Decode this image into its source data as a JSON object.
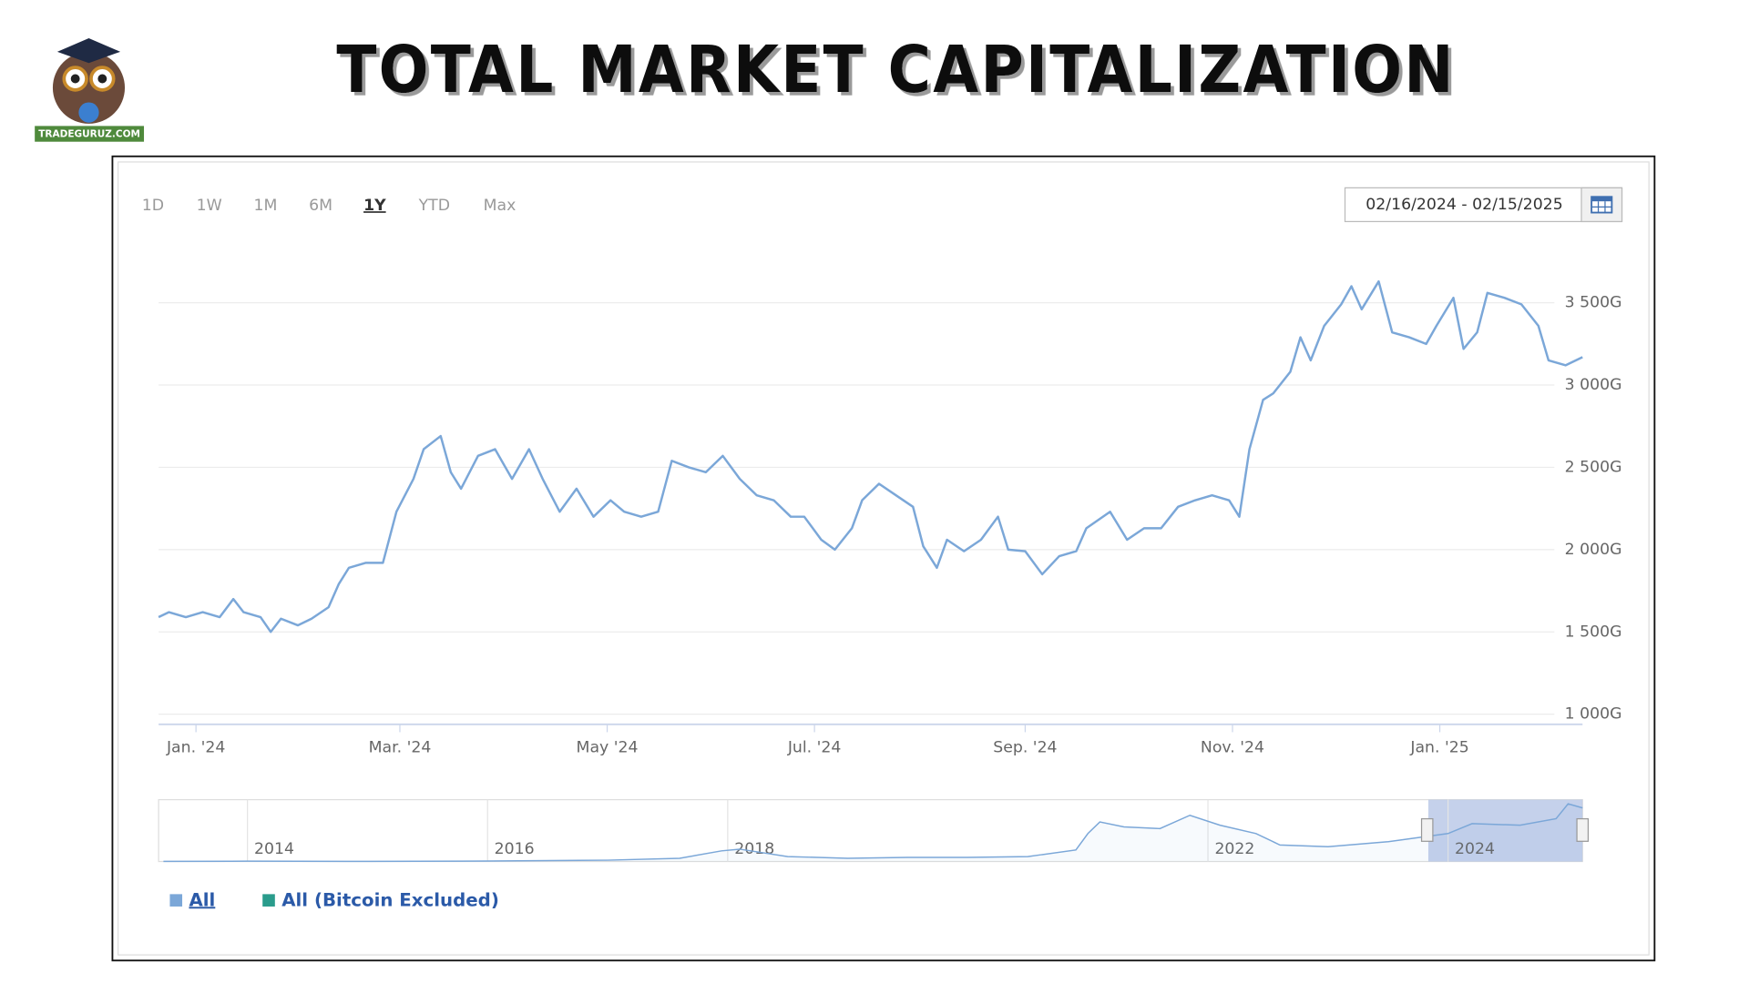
{
  "brand": "TRADEGURUZ.COM",
  "range_buttons": [
    "1D",
    "1W",
    "1M",
    "6M",
    "1Y",
    "YTD",
    "Max"
  ],
  "selected_button": 4,
  "date_range": "02/16/2024 - 02/15/2025",
  "chart_data": {
    "type": "line",
    "title": "TOTAL MARKET CAPITALIZATION",
    "x": [
      -11,
      -8,
      -3,
      2,
      7,
      11,
      14,
      19,
      22,
      25,
      30,
      34,
      39,
      42,
      45,
      50,
      55,
      59,
      64,
      67,
      72,
      75,
      78,
      83,
      88,
      93,
      98,
      102,
      107,
      112,
      117,
      122,
      126,
      131,
      136,
      140,
      145,
      150,
      155,
      160,
      165,
      170,
      175,
      179,
      184,
      188,
      193,
      196,
      201,
      206,
      211,
      214,
      218,
      221,
      226,
      231,
      236,
      239,
      244,
      249,
      254,
      259,
      262,
      269,
      274,
      279,
      284,
      289,
      294,
      299,
      304,
      307,
      310,
      314,
      317,
      322,
      325,
      328,
      332,
      337,
      340,
      343,
      348,
      352,
      357,
      362,
      365,
      370,
      373,
      377,
      380,
      385,
      390,
      395,
      398,
      403,
      408
    ],
    "series": [
      {
        "name": "All",
        "color": "#7ba7d8",
        "values": [
          1590,
          1620,
          1590,
          1620,
          1590,
          1700,
          1620,
          1590,
          1500,
          1580,
          1540,
          1580,
          1650,
          1790,
          1890,
          1920,
          1920,
          2230,
          2430,
          2610,
          2690,
          2470,
          2370,
          2570,
          2610,
          2430,
          2610,
          2430,
          2230,
          2370,
          2200,
          2300,
          2230,
          2200,
          2230,
          2540,
          2500,
          2470,
          2570,
          2430,
          2330,
          2300,
          2200,
          2200,
          2060,
          2000,
          2130,
          2300,
          2400,
          2330,
          2260,
          2020,
          1890,
          2060,
          1990,
          2060,
          2200,
          2000,
          1990,
          1850,
          1960,
          1990,
          2130,
          2230,
          2060,
          2130,
          2130,
          2260,
          2300,
          2330,
          2300,
          2200,
          2610,
          2910,
          2950,
          3080,
          3290,
          3150,
          3360,
          3490,
          3600,
          3460,
          3630,
          3320,
          3290,
          3250,
          3360,
          3530,
          3220,
          3320,
          3560,
          3530,
          3490,
          3360,
          3150,
          3120,
          3170
        ]
      }
    ],
    "hidden_series": [
      {
        "name": "All (Bitcoin Excluded)",
        "color": "#2a9c8c"
      }
    ],
    "xlim": [
      -11,
      408
    ],
    "xticks": [
      {
        "value": 0,
        "label": "Jan. '24"
      },
      {
        "value": 60,
        "label": "Mar. '24"
      },
      {
        "value": 121,
        "label": "May '24"
      },
      {
        "value": 182,
        "label": "Jul. '24"
      },
      {
        "value": 244,
        "label": "Sep. '24"
      },
      {
        "value": 305,
        "label": "Nov. '24"
      },
      {
        "value": 366,
        "label": "Jan. '25"
      }
    ],
    "ylim": [
      1000,
      3750
    ],
    "yticks": [
      {
        "value": 1000,
        "label": "1 000G"
      },
      {
        "value": 1500,
        "label": "1 500G"
      },
      {
        "value": 2000,
        "label": "2 000G"
      },
      {
        "value": 2500,
        "label": "2 500G"
      },
      {
        "value": 3000,
        "label": "3 000G"
      },
      {
        "value": 3500,
        "label": "3 500G"
      }
    ],
    "grid": true,
    "navigator": {
      "x": [
        2013.3,
        2014,
        2015,
        2016,
        2017,
        2017.6,
        2017.95,
        2018.1,
        2018.5,
        2019,
        2019.5,
        2020,
        2020.5,
        2020.9,
        2021.0,
        2021.1,
        2021.3,
        2021.6,
        2021.85,
        2022.1,
        2022.4,
        2022.6,
        2023,
        2023.5,
        2024,
        2024.2,
        2024.6,
        2024.9,
        2025.0,
        2025.12
      ],
      "values": [
        10,
        20,
        10,
        30,
        80,
        200,
        650,
        750,
        300,
        200,
        250,
        250,
        300,
        700,
        1700,
        2400,
        2100,
        2000,
        2800,
        2200,
        1700,
        1000,
        900,
        1200,
        1700,
        2300,
        2200,
        2600,
        3500,
        3250
      ],
      "xlim": [
        2013.26,
        2025.12
      ],
      "ylim": [
        0,
        3750
      ],
      "xticks": [
        2014,
        2016,
        2018,
        2022,
        2024
      ]
    }
  }
}
